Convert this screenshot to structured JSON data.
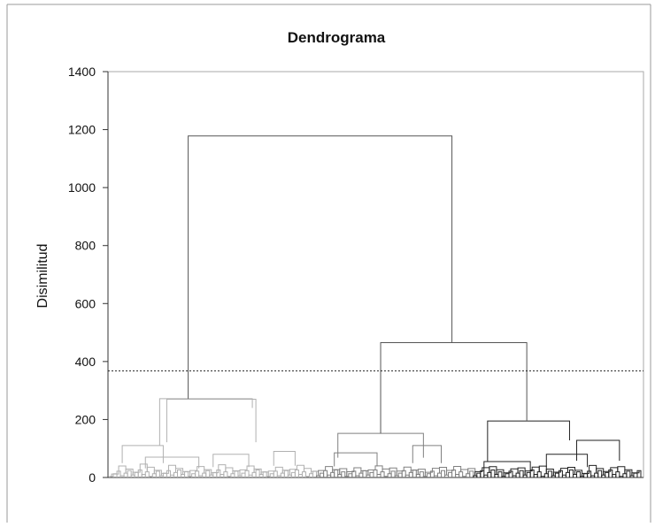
{
  "chart_data": {
    "type": "dendrogram",
    "title": "Dendrograma",
    "xlabel": "",
    "ylabel": "Disimilitud",
    "ylim": [
      0,
      1400
    ],
    "yticks": [
      0,
      200,
      400,
      600,
      800,
      1000,
      1200,
      1400
    ],
    "cut_line": 368,
    "grid": false,
    "clusters": [
      {
        "color": "#b0b0b0",
        "leaf_range": [
          0,
          58
        ]
      },
      {
        "color": "#808080",
        "leaf_range": [
          58,
          102
        ]
      },
      {
        "color": "#222222",
        "leaf_range": [
          102,
          150
        ]
      }
    ],
    "leaves": 150,
    "merges": [
      {
        "left": [
          2,
          5
        ],
        "right": [
          10,
          20
        ],
        "height": 110
      },
      {
        "left": [
          6,
          14
        ],
        "right": [
          20,
          30
        ],
        "height": 70
      },
      {
        "left": [
          26,
          32
        ],
        "right": [
          34,
          44
        ],
        "height": 80
      },
      {
        "left": [
          42,
          50
        ],
        "right": [
          48,
          56
        ],
        "height": 90
      },
      {
        "left": [
          2,
          30
        ],
        "right": [
          26,
          56
        ],
        "height": 270,
        "mid_left": 14,
        "mid_right": 40
      },
      {
        "left": [
          14,
          14
        ],
        "right": [
          40,
          40
        ],
        "height": 272
      },
      {
        "left": [
          58,
          68
        ],
        "right": [
          70,
          80
        ],
        "height": 85
      },
      {
        "left": [
          82,
          88
        ],
        "right": [
          88,
          98
        ],
        "height": 110
      },
      {
        "left": [
          64,
          64
        ],
        "right": [
          88,
          88
        ],
        "height": 152
      },
      {
        "left": [
          104,
          106
        ],
        "right": [
          112,
          124
        ],
        "height": 55
      },
      {
        "left": [
          115,
          130
        ],
        "right": [
          128,
          140
        ],
        "height": 80
      },
      {
        "left": [
          124,
          138
        ],
        "right": [
          138,
          148
        ],
        "height": 128
      },
      {
        "left": [
          106,
          106
        ],
        "right": [
          129,
          129
        ],
        "height": 195
      },
      {
        "left": [
          76,
          76
        ],
        "right": [
          117,
          117
        ],
        "height": 465
      },
      {
        "left": [
          22,
          22
        ],
        "right": [
          96,
          96
        ],
        "height": 1178
      }
    ]
  }
}
